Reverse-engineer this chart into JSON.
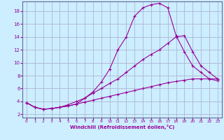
{
  "xlabel": "Windchill (Refroidissement éolien,°C)",
  "bg_color": "#cceeff",
  "grid_color": "#aaaacc",
  "line_color": "#990099",
  "xlim": [
    -0.5,
    23.5
  ],
  "ylim": [
    1.5,
    19.5
  ],
  "xticks": [
    0,
    1,
    2,
    3,
    4,
    5,
    6,
    7,
    8,
    9,
    10,
    11,
    12,
    13,
    14,
    15,
    16,
    17,
    18,
    19,
    20,
    21,
    22,
    23
  ],
  "yticks": [
    2,
    4,
    6,
    8,
    10,
    12,
    14,
    16,
    18
  ],
  "line1_x": [
    0,
    1,
    2,
    3,
    4,
    5,
    6,
    7,
    8,
    9,
    10,
    11,
    12,
    13,
    14,
    15,
    16,
    17,
    18,
    19,
    20,
    21,
    22,
    23
  ],
  "line1_y": [
    3.8,
    3.1,
    2.8,
    2.9,
    3.1,
    3.5,
    4.0,
    4.5,
    5.5,
    7.0,
    9.0,
    12.0,
    14.0,
    17.2,
    18.5,
    19.0,
    19.2,
    18.5,
    14.2,
    11.7,
    9.5,
    8.5,
    7.5,
    7.2
  ],
  "line2_x": [
    0,
    1,
    2,
    3,
    4,
    5,
    6,
    7,
    8,
    9,
    10,
    11,
    12,
    13,
    14,
    15,
    16,
    17,
    18,
    19,
    20,
    21,
    22,
    23
  ],
  "line2_y": [
    3.8,
    3.1,
    2.8,
    2.9,
    3.1,
    3.3,
    3.6,
    4.5,
    5.3,
    6.0,
    6.8,
    7.5,
    8.5,
    9.5,
    10.5,
    11.3,
    12.0,
    13.0,
    14.0,
    14.2,
    11.7,
    9.5,
    8.5,
    7.5
  ],
  "line3_x": [
    0,
    1,
    2,
    3,
    4,
    5,
    6,
    7,
    8,
    9,
    10,
    11,
    12,
    13,
    14,
    15,
    16,
    17,
    18,
    19,
    20,
    21,
    22,
    23
  ],
  "line3_y": [
    3.8,
    3.1,
    2.8,
    2.9,
    3.1,
    3.3,
    3.6,
    3.9,
    4.2,
    4.5,
    4.8,
    5.1,
    5.4,
    5.7,
    6.0,
    6.3,
    6.6,
    6.9,
    7.1,
    7.3,
    7.5,
    7.5,
    7.5,
    7.5
  ]
}
